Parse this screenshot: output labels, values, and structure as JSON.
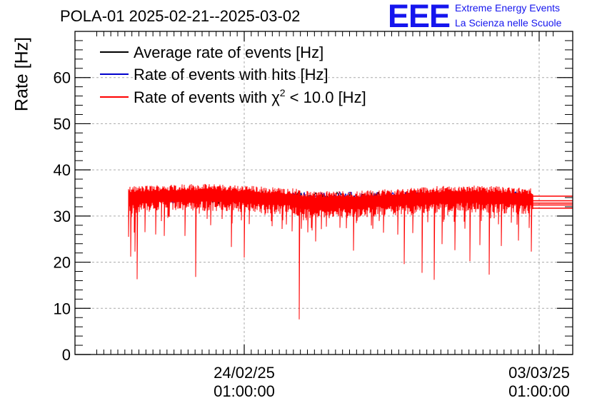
{
  "title": "POLA-01 2025-02-21--2025-03-02",
  "logo": {
    "text": "EEE",
    "line1": "Extreme Energy Events",
    "line2": "La Scienza nelle Scuole",
    "color": "#1515ee"
  },
  "chart_data": {
    "type": "line",
    "title": "POLA-01 2025-02-21--2025-03-02",
    "xlabel": "",
    "ylabel": "Rate [Hz]",
    "ylim": [
      0,
      70
    ],
    "yticks": [
      0,
      10,
      20,
      30,
      40,
      50,
      60
    ],
    "xlim_days": [
      -3.7,
      7.6
    ],
    "xticks": [
      {
        "date": "24/02/25",
        "time": "01:00:00",
        "day": 0
      },
      {
        "date": "03/03/25",
        "time": "01:00:00",
        "day": 7
      }
    ],
    "grid": true,
    "legend_position": "top-left",
    "series": [
      {
        "name": "Average rate of events [Hz]",
        "color": "#000000",
        "baseline": 34.0
      },
      {
        "name": "Rate of events with hits [Hz]",
        "color": "#0000cc",
        "baseline": 34.0
      },
      {
        "name": "Rate of events with χ2 < 10.0 [Hz]",
        "color": "#ff0000",
        "baseline": 33.8,
        "range_days": [
          -2.75,
          6.85
        ],
        "dips": [
          {
            "day": -2.74,
            "value": 25.5
          },
          {
            "day": -2.7,
            "value": 21.2
          },
          {
            "day": -2.6,
            "value": 22.3
          },
          {
            "day": -2.55,
            "value": 16.3
          },
          {
            "day": -2.35,
            "value": 26.5
          },
          {
            "day": -2.1,
            "value": 26.0
          },
          {
            "day": -1.9,
            "value": 25.7
          },
          {
            "day": -1.4,
            "value": 25.7
          },
          {
            "day": -1.15,
            "value": 16.8
          },
          {
            "day": -0.8,
            "value": 28.0
          },
          {
            "day": -0.3,
            "value": 23.3
          },
          {
            "day": 0.0,
            "value": 21.0
          },
          {
            "day": 0.9,
            "value": 27.2
          },
          {
            "day": 1.3,
            "value": 7.6
          },
          {
            "day": 1.7,
            "value": 24.5
          },
          {
            "day": 2.6,
            "value": 22.5
          },
          {
            "day": 3.3,
            "value": 26.4
          },
          {
            "day": 3.8,
            "value": 19.6
          },
          {
            "day": 4.0,
            "value": 26.3
          },
          {
            "day": 4.22,
            "value": 17.7
          },
          {
            "day": 4.5,
            "value": 16.2
          },
          {
            "day": 4.7,
            "value": 23.9
          },
          {
            "day": 5.0,
            "value": 22.6
          },
          {
            "day": 5.35,
            "value": 20.2
          },
          {
            "day": 5.6,
            "value": 23.7
          },
          {
            "day": 5.82,
            "value": 17.3
          },
          {
            "day": 6.1,
            "value": 23.5
          },
          {
            "day": 6.5,
            "value": 24.7
          },
          {
            "day": 6.82,
            "value": 22.3
          }
        ]
      }
    ]
  }
}
